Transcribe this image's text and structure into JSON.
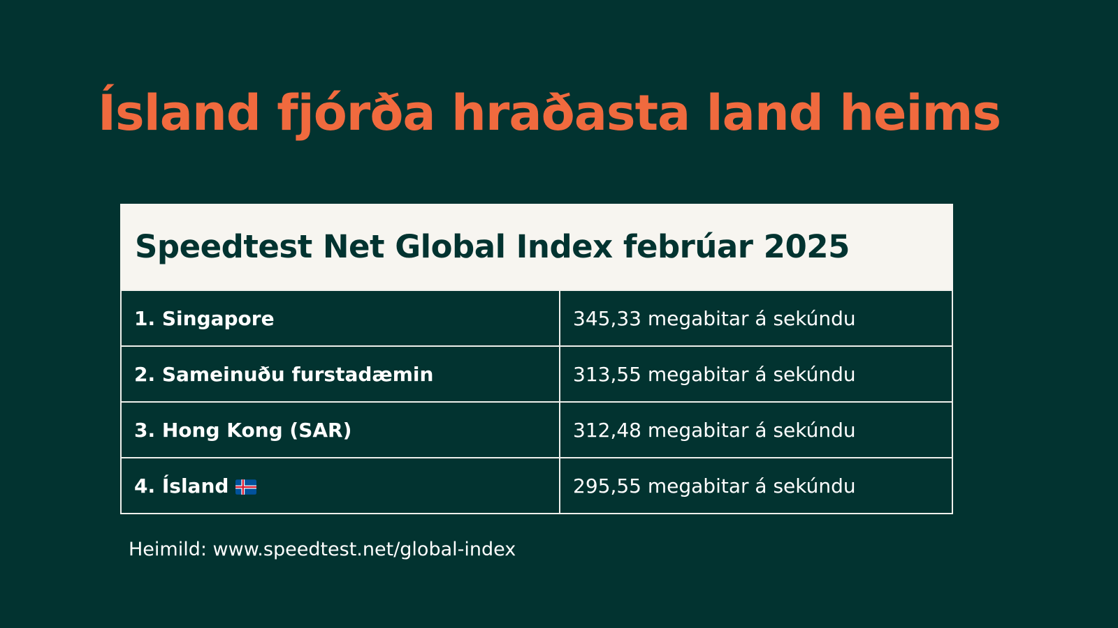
{
  "title": "Ísland fjórða hraðasta land heims",
  "table": {
    "header": "Speedtest Net Global Index febrúar 2025",
    "rows": [
      {
        "country": "1. Singapore",
        "speed": "345,33 megabitar á sekúndu"
      },
      {
        "country": "2. Sameinuðu furstadæmin",
        "speed": "313,55 megabitar á sekúndu"
      },
      {
        "country": "3. Hong Kong (SAR)",
        "speed": "312,48 megabitar á sekúndu"
      },
      {
        "country": "4. Ísland",
        "speed": "295,55 megabitar á sekúndu",
        "icon": "iceland-flag-icon"
      }
    ]
  },
  "source": "Heimild: www.speedtest.net/global-index",
  "colors": {
    "background": "#023330",
    "title": "#f06a3e",
    "header_background": "#f7f5f0",
    "header_text": "#023330",
    "cell_text": "#ffffff",
    "border": "#f0f0ec"
  }
}
